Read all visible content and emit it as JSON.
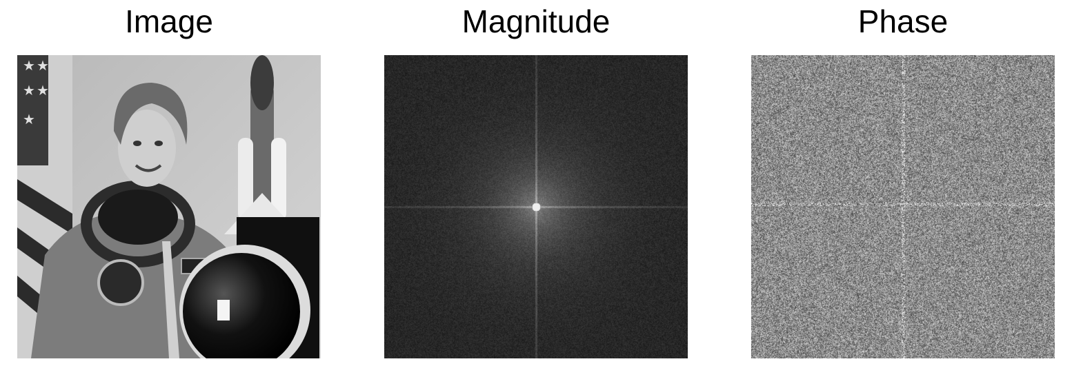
{
  "panels": [
    {
      "title": "Image",
      "icon": "astronaut-photo"
    },
    {
      "title": "Magnitude",
      "icon": "fft-magnitude-spectrum"
    },
    {
      "title": "Phase",
      "icon": "fft-phase-spectrum"
    }
  ],
  "colors": {
    "background": "#ffffff",
    "magnitude_bg": "#2a2a2a",
    "phase_mid": "#8a8a8a"
  }
}
